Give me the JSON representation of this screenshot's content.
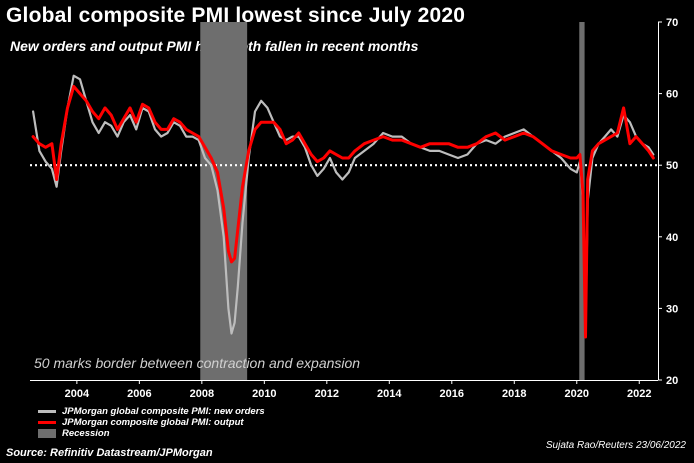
{
  "title": "Global composite PMI lowest since July 2020",
  "subtitle": "New orders and output PMI have both fallen in recent months",
  "source": "Source: Refinitiv Datastream/JPMorgan",
  "credit": "Sujata Rao/Reuters 23/06/2022",
  "colors": {
    "new_orders": "#bdbdbd",
    "output": "#ff0000",
    "recession": "#6e6e6e",
    "reference": "#ffffff"
  },
  "chart_data": {
    "type": "line",
    "title": "Global composite PMI lowest since July 2020",
    "subtitle": "New orders and output PMI have both fallen in recent months",
    "xlabel": "",
    "ylabel": "",
    "xlim": [
      2002.5,
      2022.6
    ],
    "ylim": [
      20,
      70
    ],
    "yticks": [
      20,
      30,
      40,
      50,
      60,
      70
    ],
    "xticks": [
      2004,
      2006,
      2008,
      2010,
      2012,
      2014,
      2016,
      2018,
      2020,
      2022
    ],
    "xtick_labels": [
      "2004",
      "2006",
      "2008",
      "2010",
      "2012",
      "2014",
      "2016",
      "2018",
      "2020",
      "2022"
    ],
    "reference_line": {
      "value": 50,
      "label": "50 marks border between contraction and expansion"
    },
    "recessions": [
      {
        "start": 2007.95,
        "end": 2009.45,
        "label": "Recession"
      },
      {
        "start": 2020.08,
        "end": 2020.25,
        "label": "Recession"
      }
    ],
    "legend": [
      {
        "name": "JPMorgan global composite PMI: new orders",
        "kind": "line",
        "color_key": "new_orders"
      },
      {
        "name": "JPMorgan composite global PMI: output",
        "kind": "line",
        "color_key": "output"
      },
      {
        "name": "Recession",
        "kind": "box",
        "color_key": "recession"
      }
    ],
    "series": [
      {
        "name": "JPMorgan global composite PMI: new orders",
        "color_key": "new_orders",
        "x": [
          2002.6,
          2002.8,
          2003.0,
          2003.2,
          2003.35,
          2003.5,
          2003.7,
          2003.9,
          2004.1,
          2004.3,
          2004.5,
          2004.7,
          2004.9,
          2005.1,
          2005.3,
          2005.5,
          2005.7,
          2005.9,
          2006.1,
          2006.3,
          2006.5,
          2006.7,
          2006.9,
          2007.1,
          2007.3,
          2007.5,
          2007.7,
          2007.9,
          2008.1,
          2008.3,
          2008.5,
          2008.7,
          2008.85,
          2008.95,
          2009.05,
          2009.15,
          2009.3,
          2009.5,
          2009.7,
          2009.9,
          2010.1,
          2010.3,
          2010.5,
          2010.7,
          2010.9,
          2011.1,
          2011.3,
          2011.5,
          2011.7,
          2011.9,
          2012.1,
          2012.3,
          2012.5,
          2012.7,
          2012.9,
          2013.2,
          2013.5,
          2013.8,
          2014.1,
          2014.4,
          2014.7,
          2015.0,
          2015.3,
          2015.6,
          2015.9,
          2016.2,
          2016.5,
          2016.8,
          2017.1,
          2017.4,
          2017.7,
          2018.0,
          2018.3,
          2018.6,
          2018.9,
          2019.2,
          2019.5,
          2019.8,
          2020.0,
          2020.1,
          2020.2,
          2020.28,
          2020.35,
          2020.5,
          2020.7,
          2020.9,
          2021.1,
          2021.3,
          2021.5,
          2021.7,
          2021.9,
          2022.1,
          2022.3,
          2022.45
        ],
        "values": [
          57.5,
          52,
          50.5,
          49.5,
          47,
          52,
          58,
          62.5,
          62,
          59,
          56,
          54.5,
          56,
          55.5,
          54,
          56,
          57,
          55,
          58,
          57.5,
          55,
          54,
          54.5,
          56,
          55.5,
          54,
          54,
          53.5,
          51,
          50,
          46.5,
          40,
          30,
          26.5,
          28,
          33,
          42,
          51,
          57.5,
          59,
          58,
          56,
          54,
          53.5,
          54,
          54,
          52.5,
          50,
          48.5,
          49.5,
          51,
          49,
          48,
          49,
          51,
          52,
          53,
          54.5,
          54,
          54,
          53,
          52.5,
          52,
          52,
          51.5,
          51,
          51.5,
          53,
          53.5,
          53,
          54,
          54.5,
          55,
          54,
          53,
          52,
          51,
          49.5,
          49,
          50.5,
          45,
          27,
          45,
          51,
          53,
          54,
          55,
          54,
          57,
          56,
          54,
          53,
          52.5,
          51.5
        ]
      },
      {
        "name": "JPMorgan composite global PMI: output",
        "color_key": "output",
        "x": [
          2002.6,
          2002.8,
          2003.0,
          2003.2,
          2003.35,
          2003.5,
          2003.7,
          2003.9,
          2004.1,
          2004.3,
          2004.5,
          2004.7,
          2004.9,
          2005.1,
          2005.3,
          2005.5,
          2005.7,
          2005.9,
          2006.1,
          2006.3,
          2006.5,
          2006.7,
          2006.9,
          2007.1,
          2007.3,
          2007.5,
          2007.7,
          2007.9,
          2008.1,
          2008.3,
          2008.5,
          2008.7,
          2008.85,
          2008.95,
          2009.05,
          2009.15,
          2009.3,
          2009.5,
          2009.7,
          2009.9,
          2010.1,
          2010.3,
          2010.5,
          2010.7,
          2010.9,
          2011.1,
          2011.3,
          2011.5,
          2011.7,
          2011.9,
          2012.1,
          2012.3,
          2012.5,
          2012.7,
          2012.9,
          2013.2,
          2013.5,
          2013.8,
          2014.1,
          2014.4,
          2014.7,
          2015.0,
          2015.3,
          2015.6,
          2015.9,
          2016.2,
          2016.5,
          2016.8,
          2017.1,
          2017.4,
          2017.7,
          2018.0,
          2018.3,
          2018.6,
          2018.9,
          2019.2,
          2019.5,
          2019.8,
          2020.0,
          2020.1,
          2020.2,
          2020.28,
          2020.35,
          2020.5,
          2020.7,
          2020.9,
          2021.1,
          2021.3,
          2021.5,
          2021.7,
          2021.9,
          2022.1,
          2022.3,
          2022.45
        ],
        "values": [
          54,
          53,
          52.5,
          53,
          48,
          53,
          58,
          61,
          60,
          59,
          57.5,
          56.5,
          58,
          57,
          55,
          56.5,
          58,
          56,
          58.5,
          58,
          56,
          55,
          55,
          56.5,
          56,
          55,
          54.5,
          54,
          52.5,
          51,
          49,
          44,
          38,
          36.5,
          37,
          41,
          47,
          52,
          55,
          56,
          56,
          56,
          55,
          53,
          53.5,
          54.5,
          53,
          51.5,
          50.5,
          51,
          52,
          51.5,
          51,
          51,
          52,
          53,
          53.5,
          54,
          53.5,
          53.5,
          53,
          52.5,
          53,
          53,
          53,
          52.5,
          52.5,
          53,
          54,
          54.5,
          53.5,
          54,
          54.5,
          54,
          53,
          52,
          51.5,
          51,
          51,
          51.5,
          46,
          26,
          48,
          52,
          53,
          53.5,
          54,
          54.5,
          58,
          53,
          54,
          53,
          52,
          51
        ]
      }
    ]
  }
}
